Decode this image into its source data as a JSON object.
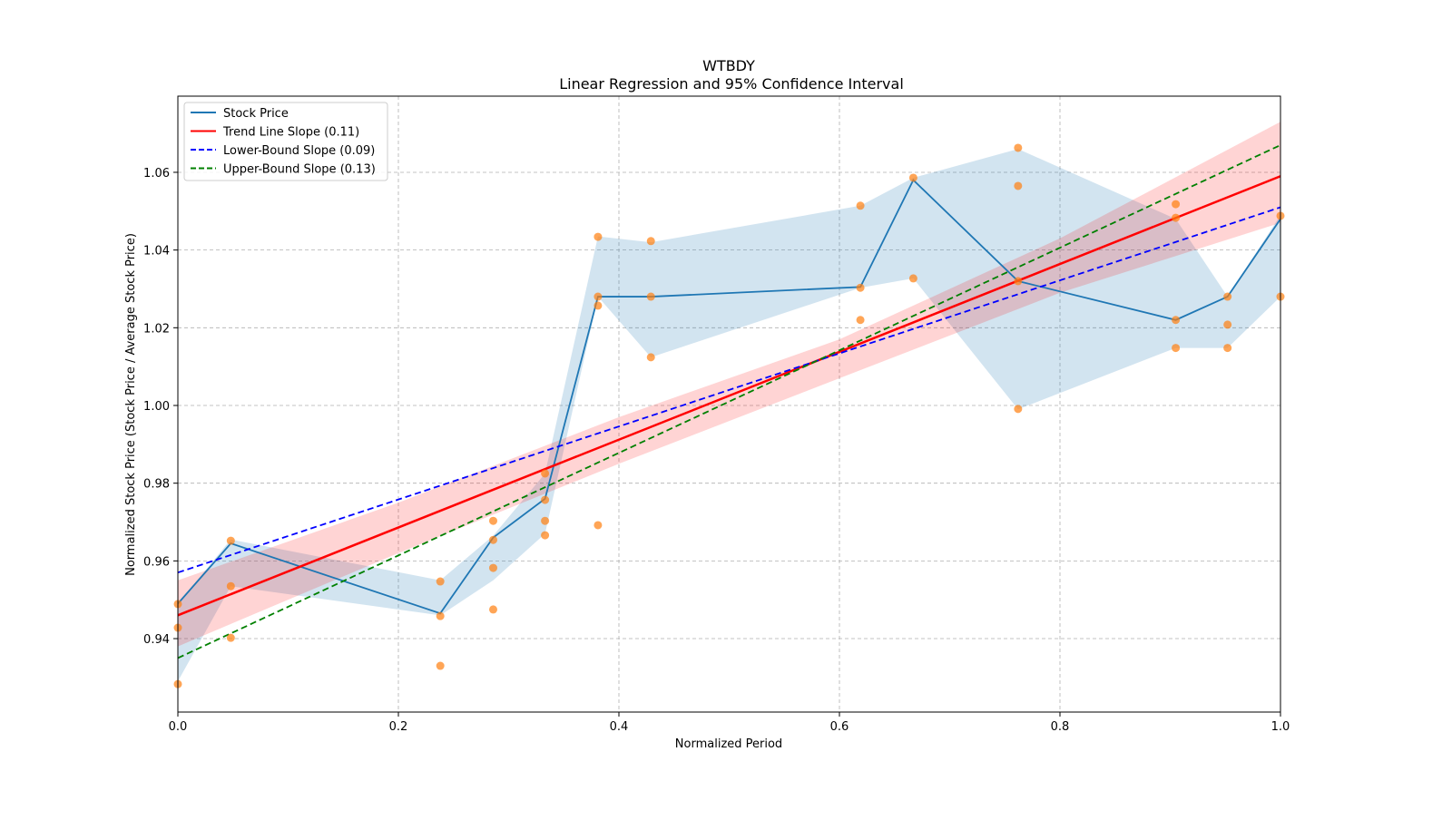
{
  "chart_data": {
    "type": "line",
    "title": "WTBDY",
    "subtitle": "Linear Regression and 95% Confidence Interval",
    "xlabel": "Normalized Period",
    "ylabel": "Normalized Stock Price (Stock Price / Average Stock Price)",
    "xlim": [
      0,
      1
    ],
    "ylim": [
      0.9211,
      1.0796
    ],
    "xticks": [
      0,
      0.2,
      0.4,
      0.6,
      0.8,
      1.0
    ],
    "xtick_labels": [
      "0.0",
      "0.2",
      "0.4",
      "0.6",
      "0.8",
      "1.0"
    ],
    "yticks": [
      0.94,
      0.96,
      0.98,
      1.0,
      1.02,
      1.04,
      1.06
    ],
    "ytick_labels": [
      "0.94",
      "0.96",
      "0.98",
      "1.00",
      "1.02",
      "1.04",
      "1.06"
    ],
    "grid": true,
    "legend_position": "top-left",
    "legend": [
      {
        "label": "Stock Price",
        "color": "#1f77b4",
        "style": "solid"
      },
      {
        "label": "Trend Line Slope (0.11)",
        "color": "#ff0000",
        "style": "solid"
      },
      {
        "label": "Lower-Bound Slope (0.09)",
        "color": "#0000ff",
        "style": "dashed"
      },
      {
        "label": "Upper-Bound Slope (0.13)",
        "color": "#008000",
        "style": "dashed"
      }
    ],
    "stock_price": {
      "x": [
        0,
        0.048,
        0.238,
        0.286,
        0.333,
        0.381,
        0.429,
        0.619,
        0.667,
        0.762,
        0.905,
        0.952,
        1.0
      ],
      "y": [
        0.949,
        0.9645,
        0.9465,
        0.966,
        0.976,
        1.028,
        1.028,
        1.0305,
        1.058,
        1.032,
        1.022,
        1.028,
        1.048
      ],
      "band_lower": [
        0.929,
        0.9535,
        0.946,
        0.955,
        0.967,
        1.028,
        1.0124,
        1.0303,
        1.0327,
        0.999,
        1.0148,
        1.0148,
        1.028
      ],
      "band_upper": [
        0.949,
        0.9655,
        0.955,
        0.9665,
        0.9825,
        1.0435,
        1.042,
        1.0514,
        1.0586,
        1.066,
        1.048,
        1.028,
        1.049
      ]
    },
    "scatter": {
      "color": "#ff7f0e",
      "points": [
        [
          0,
          0.9489
        ],
        [
          0,
          0.9428
        ],
        [
          0,
          0.9283
        ],
        [
          0.048,
          0.9652
        ],
        [
          0.048,
          0.9535
        ],
        [
          0.048,
          0.9402
        ],
        [
          0.238,
          0.9547
        ],
        [
          0.238,
          0.9458
        ],
        [
          0.238,
          0.933
        ],
        [
          0.286,
          0.9703
        ],
        [
          0.286,
          0.9654
        ],
        [
          0.286,
          0.9582
        ],
        [
          0.286,
          0.9475
        ],
        [
          0.333,
          0.9825
        ],
        [
          0.333,
          0.9757
        ],
        [
          0.333,
          0.9703
        ],
        [
          0.333,
          0.9666
        ],
        [
          0.381,
          1.0434
        ],
        [
          0.381,
          1.028
        ],
        [
          0.381,
          1.0257
        ],
        [
          0.381,
          0.9692
        ],
        [
          0.429,
          1.0423
        ],
        [
          0.429,
          1.028
        ],
        [
          0.429,
          1.0124
        ],
        [
          0.619,
          1.0514
        ],
        [
          0.619,
          1.0303
        ],
        [
          0.619,
          1.022
        ],
        [
          0.667,
          1.0586
        ],
        [
          0.667,
          1.0327
        ],
        [
          0.762,
          1.0663
        ],
        [
          0.762,
          1.0565
        ],
        [
          0.762,
          1.032
        ],
        [
          0.762,
          0.9991
        ],
        [
          0.905,
          1.0518
        ],
        [
          0.905,
          1.0483
        ],
        [
          0.905,
          1.022
        ],
        [
          0.905,
          1.0148
        ],
        [
          0.952,
          1.028
        ],
        [
          0.952,
          1.0208
        ],
        [
          0.952,
          1.0148
        ],
        [
          1.0,
          1.0488
        ],
        [
          1.0,
          1.028
        ]
      ]
    },
    "trend_line": {
      "x": [
        0,
        1
      ],
      "y": [
        0.946,
        1.059
      ],
      "slope": 0.11
    },
    "lower_bound_line": {
      "x": [
        0,
        1
      ],
      "y": [
        0.957,
        1.051
      ],
      "slope": 0.09
    },
    "upper_bound_line": {
      "x": [
        0,
        1
      ],
      "y": [
        0.935,
        1.067
      ],
      "slope": 0.13
    },
    "trend_ci": {
      "x": [
        0,
        0.2,
        0.4,
        0.6,
        0.8,
        1.0
      ],
      "lower": [
        0.938,
        0.962,
        0.985,
        1.007,
        1.029,
        1.047
      ],
      "upper": [
        0.955,
        0.975,
        0.997,
        1.017,
        1.043,
        1.073
      ]
    }
  }
}
